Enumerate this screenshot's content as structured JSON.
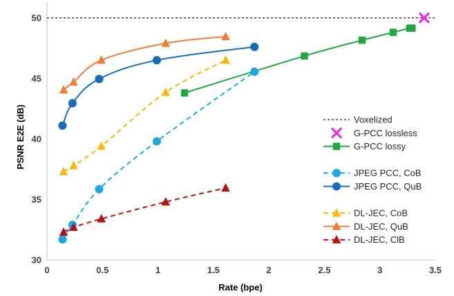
{
  "chart_data": {
    "type": "line",
    "xlabel": "Rate (bpe)",
    "ylabel": "PSNR E2E (dB)",
    "xlim": [
      0,
      3.5
    ],
    "ylim": [
      30,
      51.3
    ],
    "x_ticks": [
      "0",
      "0.5",
      "1",
      "1.5",
      "2",
      "2.5",
      "3",
      "3.5"
    ],
    "y_ticks": [
      "30",
      "35",
      "40",
      "45",
      "50"
    ],
    "grid": "none",
    "legend_position": "right",
    "series": [
      {
        "name": "Voxelized",
        "style": "dotted-line",
        "color": "#404040",
        "x": [
          0,
          3.5
        ],
        "y": [
          50,
          50
        ]
      },
      {
        "name": "G-PCC lossless",
        "style": "marker-only",
        "marker": "x",
        "color": "#e62ee6",
        "x": [
          3.4
        ],
        "y": [
          50
        ]
      },
      {
        "name": "G-PCC lossy",
        "style": "solid",
        "marker": "square",
        "color": "#21a642",
        "x": [
          1.24,
          2.32,
          2.84,
          3.12,
          3.27,
          3.29
        ],
        "y": [
          43.8,
          46.85,
          48.15,
          48.8,
          49.15,
          49.15
        ]
      },
      {
        "name": "",
        "style": "gap"
      },
      {
        "name": "JPEG PCC, CoB",
        "style": "dashed",
        "marker": "circle",
        "color": "#1fa8d9",
        "x": [
          0.14,
          0.23,
          0.47,
          0.99,
          1.87
        ],
        "y": [
          31.7,
          32.9,
          35.85,
          39.8,
          45.55
        ]
      },
      {
        "name": "JPEG PCC, QuB",
        "style": "solid",
        "marker": "circle",
        "color": "#1a6cb8",
        "x": [
          0.14,
          0.23,
          0.47,
          0.99,
          1.87
        ],
        "y": [
          41.1,
          42.95,
          44.95,
          46.5,
          47.6
        ]
      },
      {
        "name": "",
        "style": "gap"
      },
      {
        "name": "DL-JEC, CoB",
        "style": "dashed",
        "marker": "triangle",
        "color": "#f5b90f",
        "x": [
          0.15,
          0.24,
          0.49,
          1.07,
          1.61
        ],
        "y": [
          37.3,
          37.8,
          39.4,
          43.85,
          46.5
        ]
      },
      {
        "name": "DL-JEC, QuB",
        "style": "solid",
        "marker": "triangle",
        "color": "#ec7d3c",
        "x": [
          0.15,
          0.24,
          0.49,
          1.07,
          1.61
        ],
        "y": [
          44.05,
          44.7,
          46.5,
          47.9,
          48.45
        ]
      },
      {
        "name": "DL-JEC, ClB",
        "style": "dashed",
        "marker": "triangle",
        "color": "#b01414",
        "x": [
          0.15,
          0.24,
          0.49,
          1.07,
          1.61
        ],
        "y": [
          32.3,
          32.7,
          33.4,
          34.8,
          35.95
        ]
      }
    ]
  }
}
